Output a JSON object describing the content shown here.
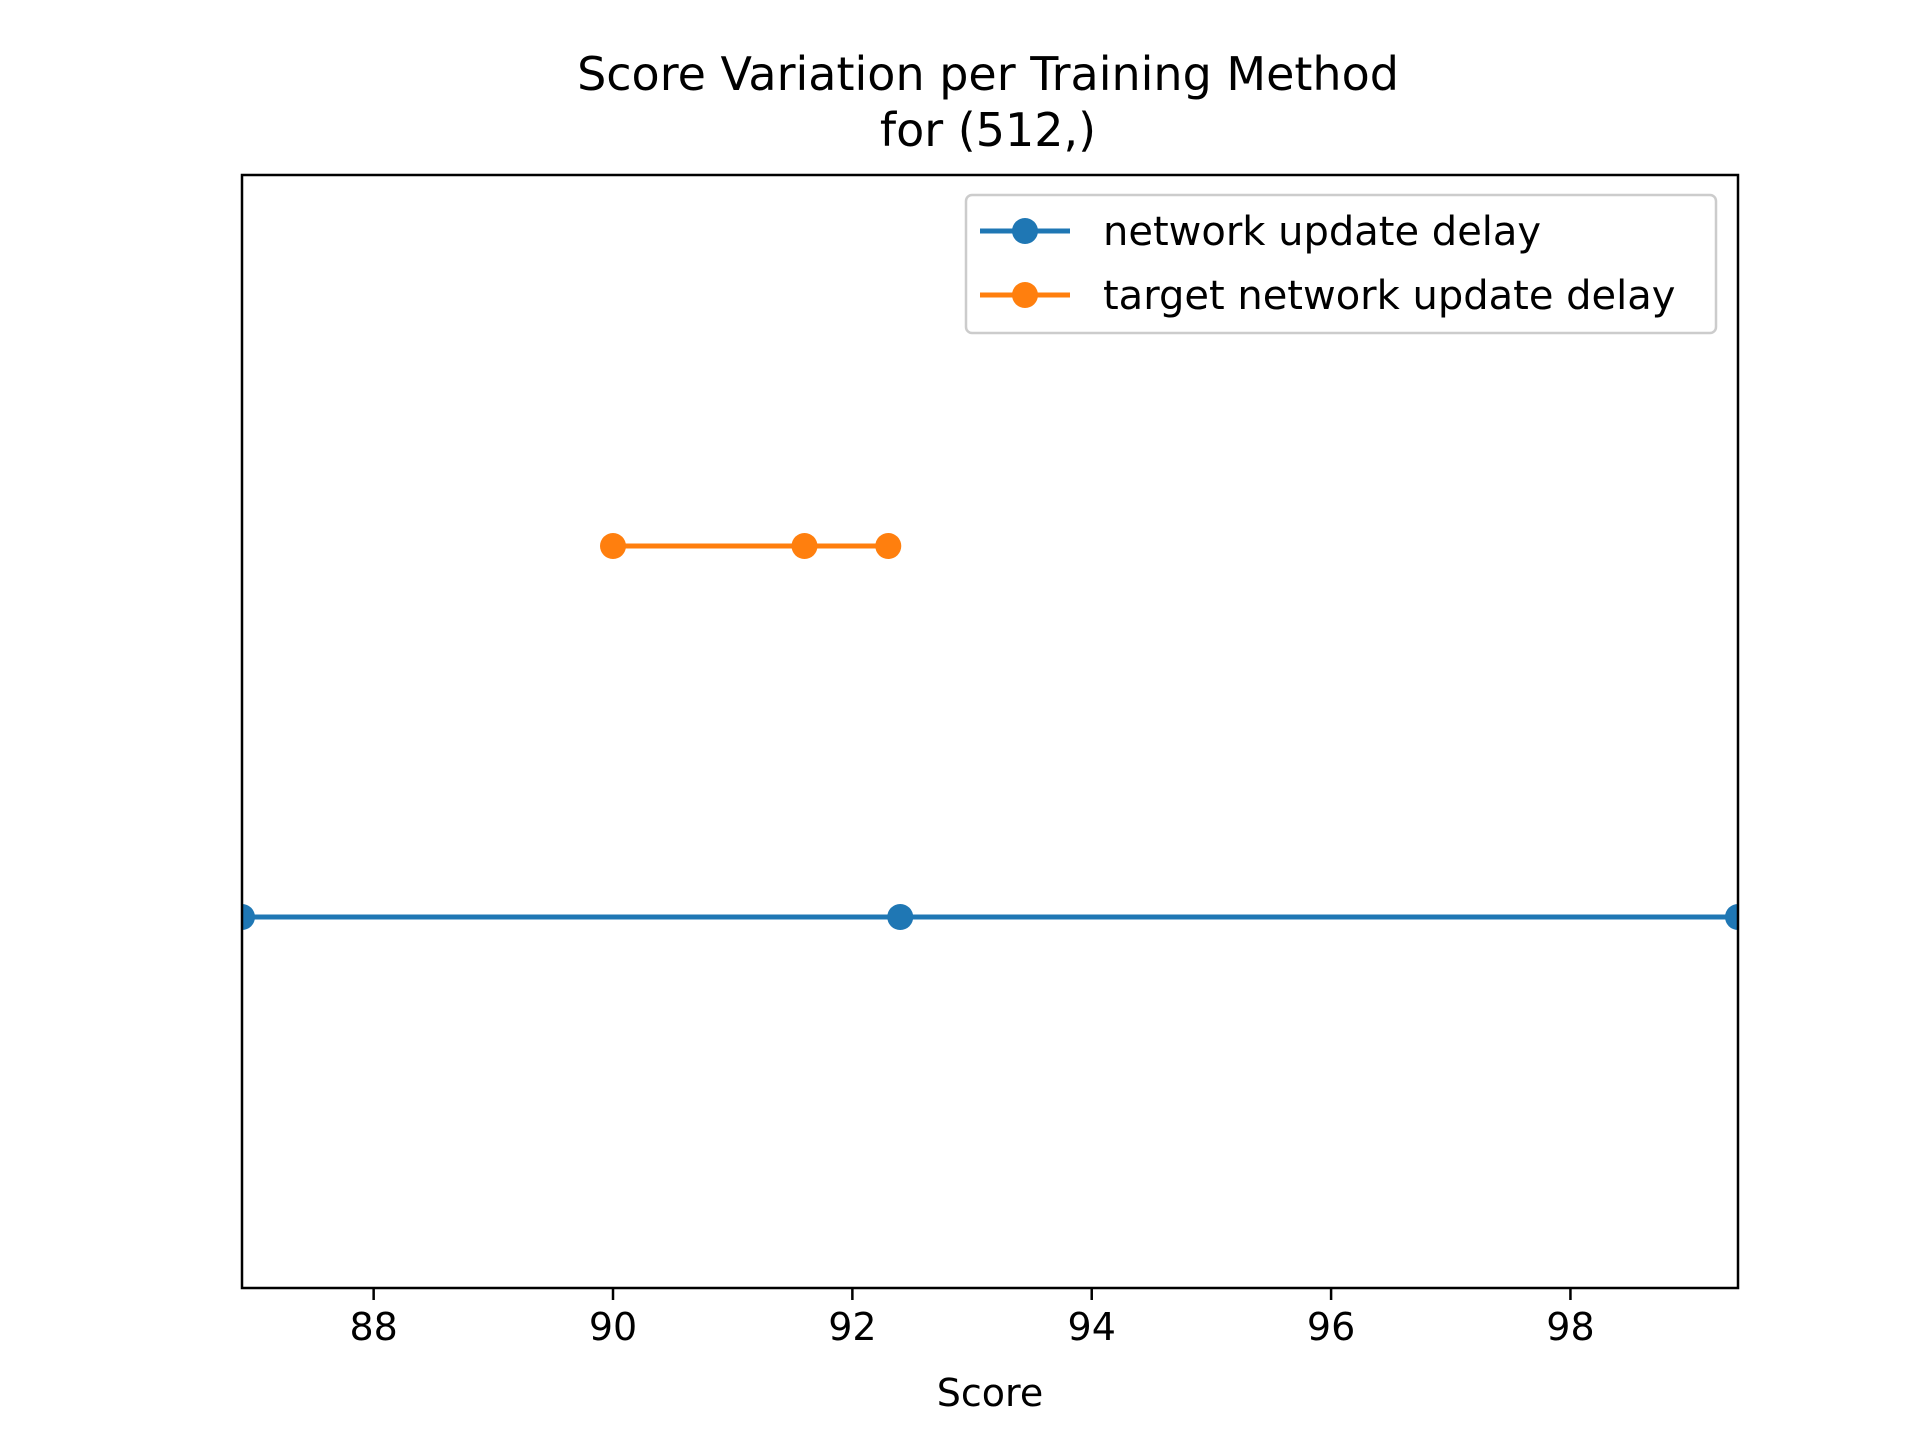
{
  "chart_data": {
    "type": "line",
    "title": "Score Variation per Training Method",
    "subtitle": "for (512,)",
    "xlabel": "Score",
    "ylabel": "",
    "xlim": [
      86.9,
      99.4
    ],
    "ylim": [
      0,
      3
    ],
    "x_ticks": [
      88,
      90,
      92,
      94,
      96,
      98
    ],
    "x_tick_labels": [
      "88",
      "90",
      "92",
      "94",
      "96",
      "98"
    ],
    "grid": false,
    "legend_position": "top-right",
    "series": [
      {
        "name": "network update delay",
        "color": "#1f77b4",
        "y": 1,
        "x": [
          86.9,
          92.4,
          99.4
        ]
      },
      {
        "name": "target network update delay",
        "color": "#ff7f0e",
        "y": 2,
        "x": [
          90.0,
          91.6,
          92.3
        ]
      }
    ]
  }
}
